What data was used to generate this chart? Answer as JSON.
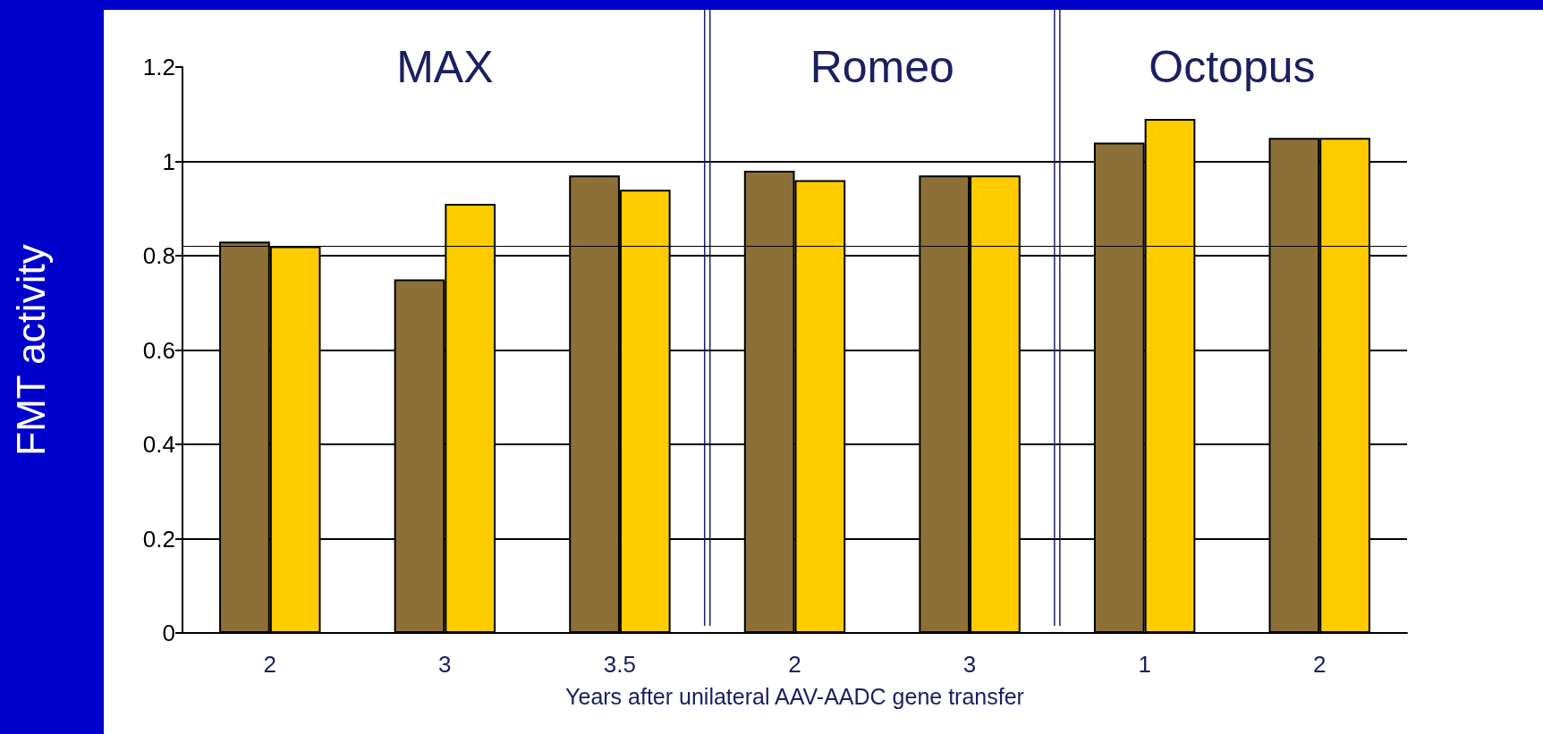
{
  "chart_data": {
    "type": "bar",
    "ylabel": "FMT activity",
    "xlabel": "Years after unilateral AAV-AADC gene transfer",
    "categories": [
      "2",
      "3",
      "3.5",
      "2",
      "3",
      "1",
      "2"
    ],
    "series": [
      {
        "color": "#8c7038",
        "values": [
          0.83,
          0.75,
          0.97,
          0.98,
          0.97,
          1.04,
          1.05
        ]
      },
      {
        "color": "#ffcc00",
        "values": [
          0.82,
          0.91,
          0.94,
          0.96,
          0.97,
          1.09,
          1.05
        ]
      }
    ],
    "ylim": [
      0,
      1.2
    ],
    "yticks": [
      0,
      0.2,
      0.4,
      0.6,
      0.8,
      1,
      1.2
    ],
    "grid": "y",
    "annotations": [
      "MAX",
      "Romeo",
      "Octopus"
    ],
    "ref_lines": [
      {
        "axis": "y",
        "value": 0.82,
        "color": "#000000"
      }
    ]
  }
}
